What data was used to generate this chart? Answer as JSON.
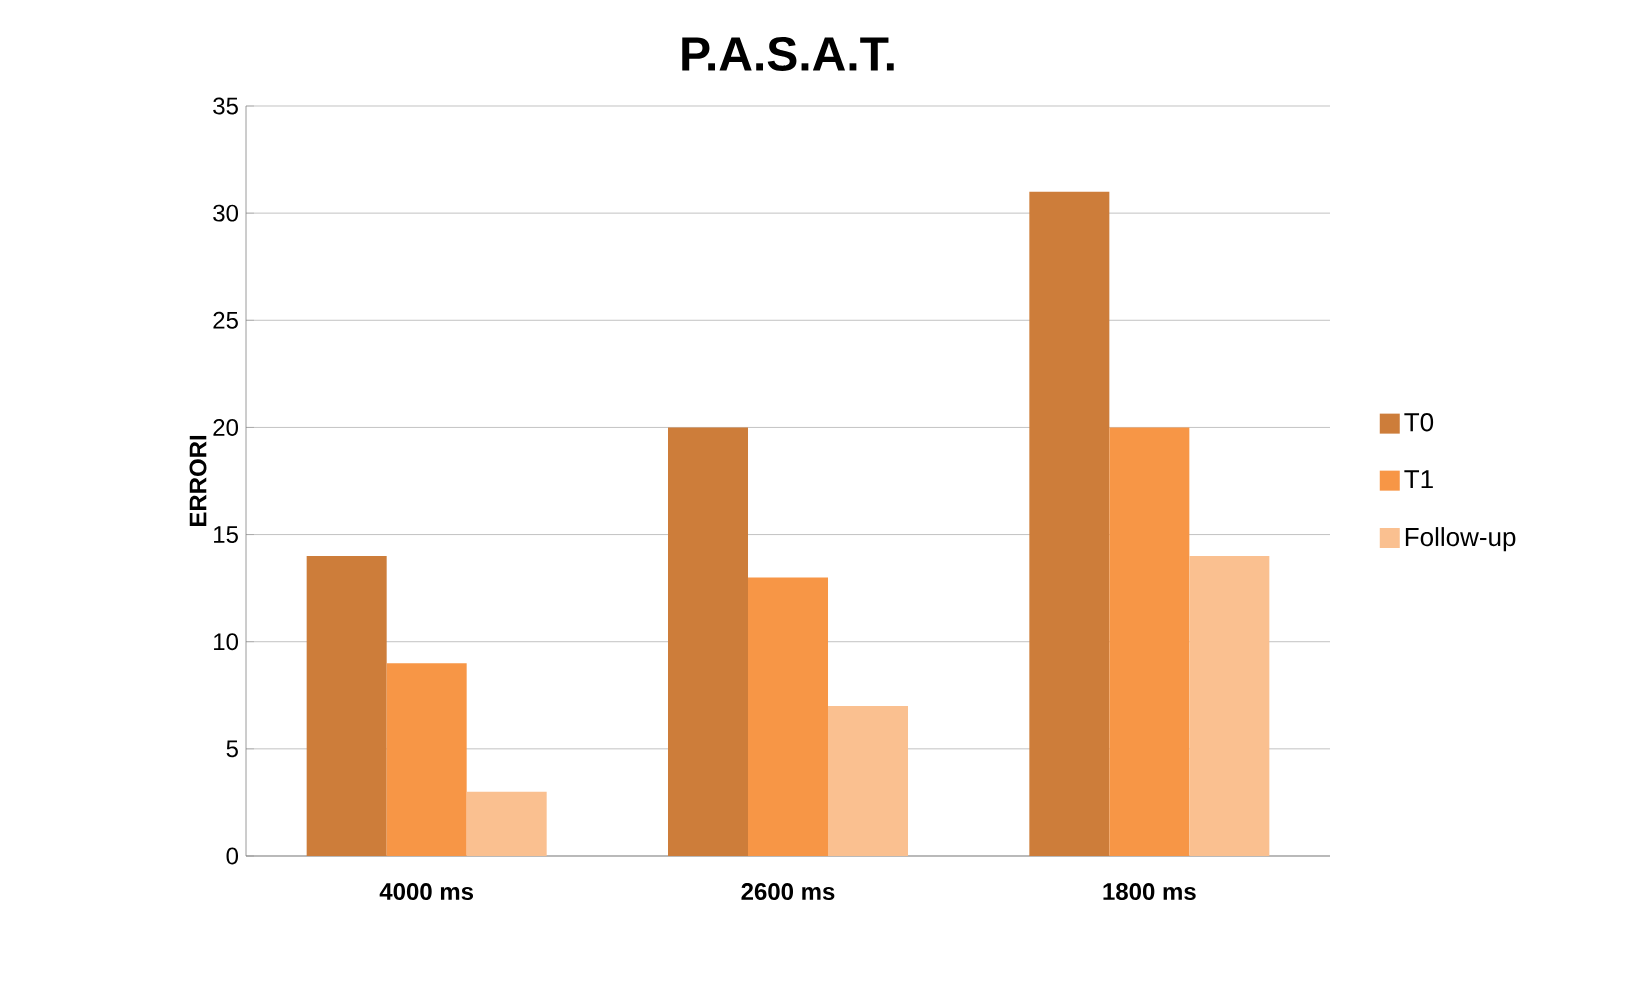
{
  "chart_data": {
    "type": "bar",
    "title": "P.A.S.A.T.",
    "ylabel": "ERRORI",
    "categories": [
      "4000 ms",
      "2600 ms",
      "1800 ms"
    ],
    "series": [
      {
        "name": "T0",
        "color": "#cd7d3a",
        "values": [
          14,
          20,
          31
        ]
      },
      {
        "name": "T1",
        "color": "#f79646",
        "values": [
          9,
          13,
          20
        ]
      },
      {
        "name": "Follow-up",
        "color": "#fac090",
        "values": [
          3,
          7,
          14
        ]
      }
    ],
    "ylim": [
      0,
      35
    ],
    "yticks": [
      0,
      5,
      10,
      15,
      20,
      25,
      30,
      35
    ],
    "grid": "y",
    "legend": "right"
  }
}
